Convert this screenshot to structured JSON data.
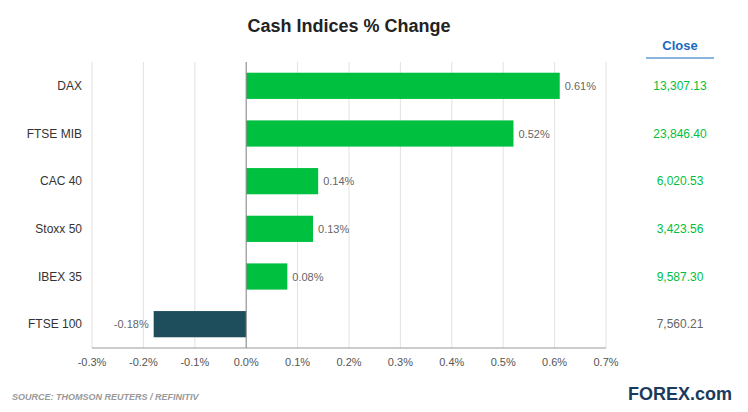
{
  "chart_data": {
    "type": "bar",
    "orientation": "horizontal",
    "title": "Cash Indices % Change",
    "categories": [
      "DAX",
      "FTSE MIB",
      "CAC 40",
      "Stoxx 50",
      "IBEX 35",
      "FTSE 100"
    ],
    "values": [
      0.61,
      0.52,
      0.14,
      0.13,
      0.08,
      -0.18
    ],
    "value_labels": [
      "0.61%",
      "0.52%",
      "0.14%",
      "0.13%",
      "0.08%",
      "-0.18%"
    ],
    "colors": [
      "#00c040",
      "#00c040",
      "#00c040",
      "#00c040",
      "#00c040",
      "#1e4d5c"
    ],
    "data_labels": true,
    "xlim": [
      -0.3,
      0.7
    ],
    "xticks": [
      {
        "value": -0.3,
        "label": "-0.3%"
      },
      {
        "value": -0.2,
        "label": "-0.2%"
      },
      {
        "value": -0.1,
        "label": "-0.1%"
      },
      {
        "value": 0,
        "label": "0.0%"
      },
      {
        "value": 0.1,
        "label": "0.1%"
      },
      {
        "value": 0.2,
        "label": "0.2%"
      },
      {
        "value": 0.3,
        "label": "0.3%"
      },
      {
        "value": 0.4,
        "label": "0.4%"
      },
      {
        "value": 0.5,
        "label": "0.5%"
      },
      {
        "value": 0.6,
        "label": "0.6%"
      },
      {
        "value": 0.7,
        "label": "0.7%"
      }
    ],
    "grid": true,
    "annotations": [
      {
        "text": "Close",
        "color": "#1a6abf"
      },
      {
        "text": "13,307.13",
        "color": "#00c040"
      },
      {
        "text": "23,846.40",
        "color": "#00c040"
      },
      {
        "text": "6,020.53",
        "color": "#00c040"
      },
      {
        "text": "3,423.56",
        "color": "#00c040"
      },
      {
        "text": "9,587.30",
        "color": "#00c040"
      },
      {
        "text": "7,560.21",
        "color": "#666666"
      },
      {
        "text": "SOURCE: THOMSON REUTERS / REFINITIV"
      },
      {
        "text": "FOREX.com"
      }
    ]
  }
}
